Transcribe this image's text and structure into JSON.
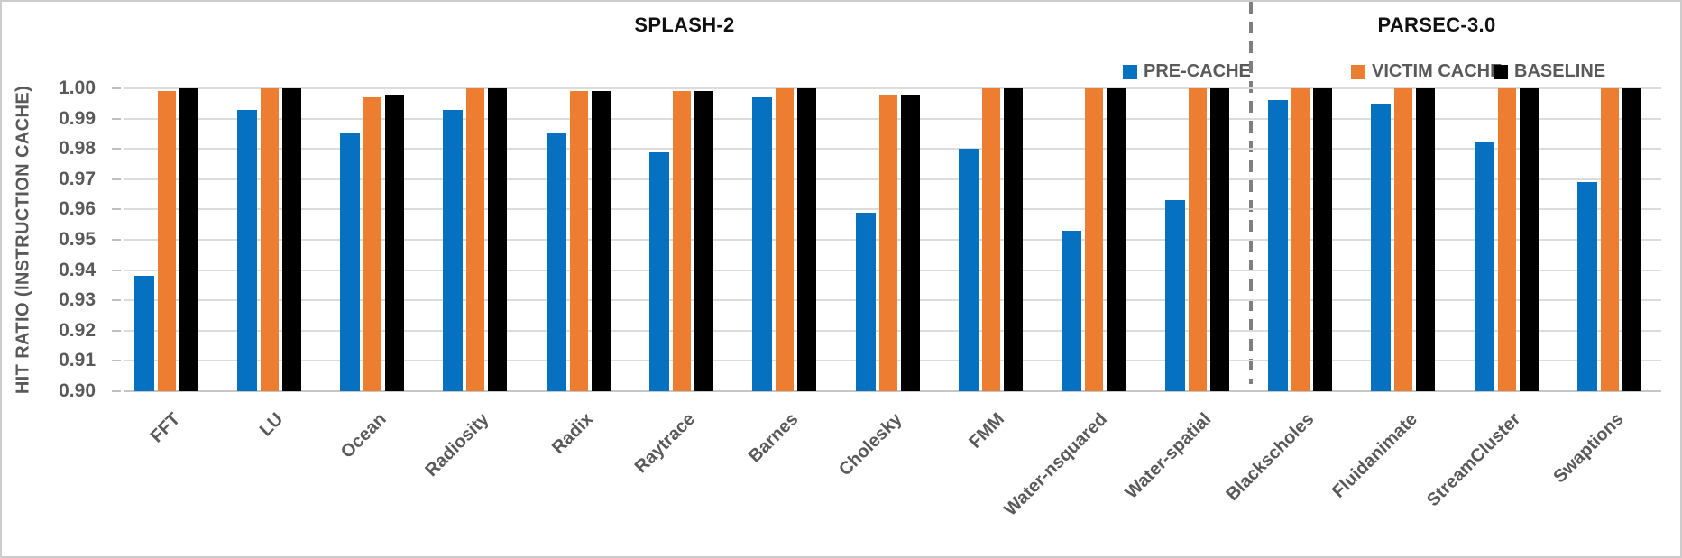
{
  "chart_data": {
    "type": "bar",
    "sections": [
      {
        "title": "SPLASH-2",
        "category_count": 11
      },
      {
        "title": "PARSEC-3.0",
        "category_count": 4
      }
    ],
    "categories": [
      "FFT",
      "LU",
      "Ocean",
      "Radiosity",
      "Radix",
      "Raytrace",
      "Barnes",
      "Cholesky",
      "FMM",
      "Water-nsquared",
      "Water-spatial",
      "Blackscholes",
      "Fluidanimate",
      "StreamCluster",
      "Swaptions"
    ],
    "series": [
      {
        "name": "PRE-CACHE",
        "color": "#0771C1",
        "values": [
          0.938,
          0.993,
          0.985,
          0.993,
          0.985,
          0.979,
          0.997,
          0.959,
          0.98,
          0.953,
          0.963,
          0.996,
          0.995,
          0.982,
          0.969
        ]
      },
      {
        "name": "VICTIM CACHE",
        "color": "#ED7D31",
        "values": [
          0.999,
          1.0,
          0.997,
          1.0,
          0.999,
          0.999,
          1.0,
          0.998,
          1.0,
          1.0,
          1.0,
          1.0,
          1.0,
          1.0,
          1.0
        ]
      },
      {
        "name": "BASELINE",
        "color": "#000000",
        "values": [
          1.0,
          1.0,
          0.998,
          1.0,
          0.999,
          0.999,
          1.0,
          0.998,
          1.0,
          1.0,
          1.0,
          1.0,
          1.0,
          1.0,
          1.0
        ]
      }
    ],
    "ylabel": "HIT RATIO (INSTRUCTION CACHE)",
    "ylim": [
      0.9,
      1.0
    ],
    "ytick_step": 0.01,
    "ytick_labels": [
      "1.00",
      "0.99",
      "0.98",
      "0.97",
      "0.96",
      "0.95",
      "0.94",
      "0.93",
      "0.92",
      "0.91",
      "0.90"
    ],
    "grid": true,
    "legend_position": "top-right",
    "separator": {
      "after_category": "Water-spatial",
      "style": "dashed"
    }
  },
  "colors": {
    "axis_text": "#595959",
    "gridline": "#DCDCDC",
    "separator_line": "#7F7F7F",
    "section_title_text": "#111111"
  }
}
